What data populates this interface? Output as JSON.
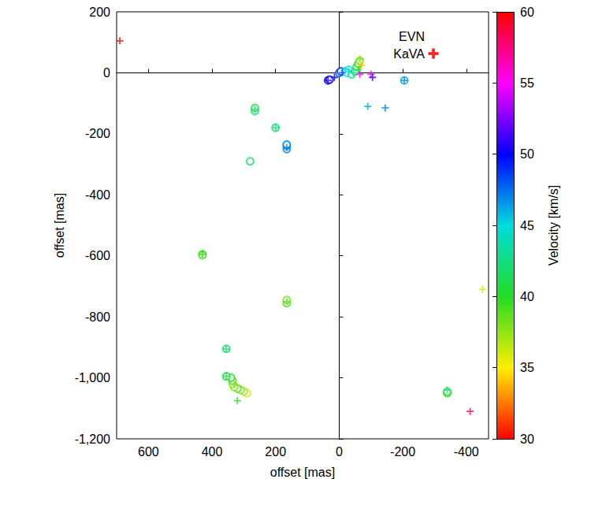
{
  "chart_data": {
    "type": "scatter",
    "x_label": "offset [mas]",
    "y_label": "offset [mas]",
    "xlim": [
      700,
      -470
    ],
    "xticks": [
      600,
      400,
      200,
      0,
      -200,
      -400
    ],
    "ylim": [
      -1200,
      200
    ],
    "yticks": [
      200,
      0,
      -200,
      -400,
      -600,
      -800,
      -1000,
      -1200
    ],
    "grid": false,
    "legend": "upper right",
    "colorbar": {
      "label": "Velocity [km/s]",
      "range": [
        30,
        60
      ],
      "ticks": [
        30,
        35,
        40,
        45,
        50,
        55,
        60
      ]
    },
    "series": [
      {
        "name": "EVN",
        "marker": "circle",
        "color": "#b5e02a",
        "values": [
          [
            -340,
            -1050,
            40
          ],
          [
            -340,
            -1045,
            41
          ],
          [
            290,
            -1050,
            36
          ],
          [
            300,
            -1045,
            37
          ],
          [
            310,
            -1040,
            38
          ],
          [
            320,
            -1035,
            39
          ],
          [
            330,
            -1030,
            38
          ],
          [
            335,
            -1020,
            38
          ],
          [
            335,
            -1010,
            39
          ],
          [
            340,
            -1000,
            40
          ],
          [
            355,
            -995,
            41
          ],
          [
            355,
            -905,
            42
          ],
          [
            430,
            -595,
            40
          ],
          [
            430,
            -598,
            39
          ],
          [
            165,
            -755,
            39
          ],
          [
            165,
            -745,
            38
          ],
          [
            280,
            -290,
            42
          ],
          [
            165,
            -250,
            47
          ],
          [
            165,
            -240,
            47
          ],
          [
            165,
            -235,
            47
          ],
          [
            200,
            -180,
            42
          ],
          [
            265,
            -125,
            42
          ],
          [
            265,
            -115,
            41
          ],
          [
            35,
            -25,
            50
          ],
          [
            30,
            -22,
            50
          ],
          [
            0,
            0,
            48
          ],
          [
            -5,
            5,
            49
          ],
          [
            -20,
            5,
            46
          ],
          [
            -30,
            10,
            45
          ],
          [
            -25,
            0,
            44
          ],
          [
            -40,
            -5,
            43
          ],
          [
            -50,
            5,
            42
          ],
          [
            -55,
            20,
            41
          ],
          [
            -60,
            30,
            40
          ],
          [
            -65,
            40,
            38
          ],
          [
            -205,
            -25,
            46
          ]
        ]
      },
      {
        "name": "KaVA",
        "marker": "plus",
        "color": "#ff0000",
        "values": [
          [
            690,
            105,
            60
          ],
          [
            -412,
            -1110,
            58
          ],
          [
            -451,
            -710,
            36
          ],
          [
            320,
            -1075,
            40
          ],
          [
            -340,
            -1040,
            42
          ],
          [
            -90,
            -110,
            46
          ],
          [
            -145,
            -115,
            47
          ],
          [
            -205,
            -25,
            47
          ],
          [
            35,
            -25,
            51
          ],
          [
            15,
            -15,
            50
          ],
          [
            -10,
            0,
            48
          ],
          [
            -30,
            5,
            45
          ],
          [
            -45,
            0,
            43
          ],
          [
            -60,
            10,
            40
          ],
          [
            -65,
            -5,
            55
          ],
          [
            -100,
            -5,
            55
          ],
          [
            -105,
            -15,
            51
          ],
          [
            -70,
            25,
            34
          ],
          [
            -65,
            45,
            38
          ],
          [
            265,
            -120,
            42
          ],
          [
            200,
            -180,
            42
          ],
          [
            165,
            -245,
            47
          ],
          [
            430,
            -595,
            40
          ],
          [
            165,
            -750,
            39
          ],
          [
            355,
            -905,
            42
          ],
          [
            355,
            -995,
            41
          ],
          [
            330,
            -1020,
            38
          ]
        ]
      }
    ]
  }
}
